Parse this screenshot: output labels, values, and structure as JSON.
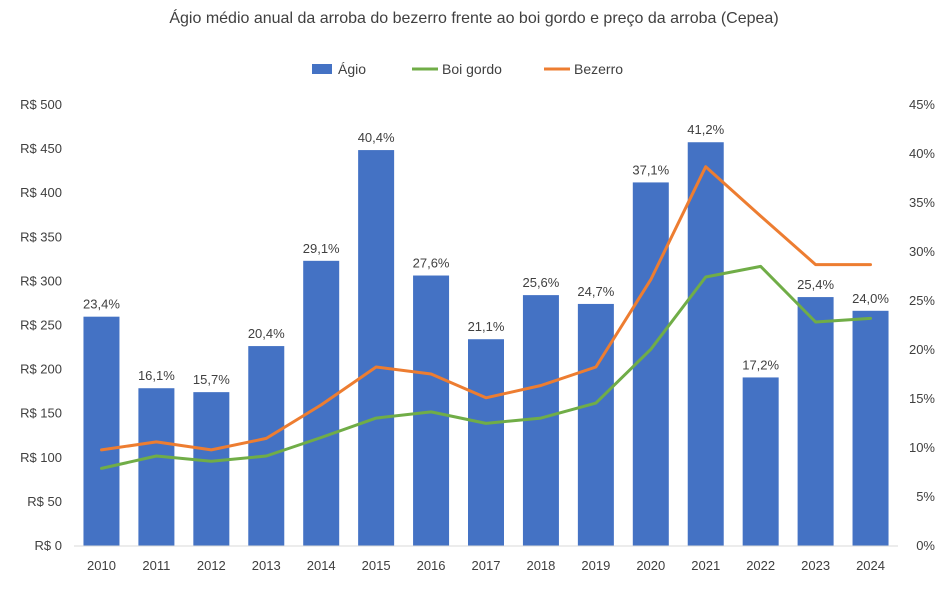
{
  "chart_data": {
    "type": "bar",
    "title": "Ágio médio anual da arroba do bezerro frente ao boi gordo e preço da arroba (Cepea)",
    "categories": [
      "2010",
      "2011",
      "2012",
      "2013",
      "2014",
      "2015",
      "2016",
      "2017",
      "2018",
      "2019",
      "2020",
      "2021",
      "2022",
      "2023",
      "2024"
    ],
    "series": [
      {
        "name": "Ágio",
        "type": "bar",
        "axis": "right",
        "color": "#4472C4",
        "values": [
          23.4,
          16.1,
          15.7,
          20.4,
          29.1,
          40.4,
          27.6,
          21.1,
          25.6,
          24.7,
          37.1,
          41.2,
          17.2,
          25.4,
          24.0
        ],
        "labels": [
          "23,4%",
          "16,1%",
          "15,7%",
          "20,4%",
          "29,1%",
          "40,4%",
          "27,6%",
          "21,1%",
          "25,6%",
          "24,7%",
          "37,1%",
          "41,2%",
          "17,2%",
          "25,4%",
          "24,0%"
        ]
      },
      {
        "name": "Boi gordo",
        "type": "line",
        "axis": "left",
        "color": "#70AD47",
        "values": [
          88,
          102,
          96,
          102,
          123,
          145,
          152,
          139,
          145,
          162,
          223,
          305,
          317,
          254,
          258
        ]
      },
      {
        "name": "Bezerro",
        "type": "line",
        "axis": "left",
        "color": "#ED7D31",
        "values": [
          109,
          118,
          109,
          122,
          160,
          203,
          195,
          168,
          182,
          203,
          302,
          430,
          374,
          319,
          319
        ]
      }
    ],
    "left_axis": {
      "range": [
        0,
        500
      ],
      "ticks": [
        0,
        50,
        100,
        150,
        200,
        250,
        300,
        350,
        400,
        450,
        500
      ],
      "tick_labels": [
        "R$ 0",
        "R$ 50",
        "R$ 100",
        "R$ 150",
        "R$ 200",
        "R$ 250",
        "R$ 300",
        "R$ 350",
        "R$ 400",
        "R$ 450",
        "R$ 500"
      ]
    },
    "right_axis": {
      "range": [
        0,
        45
      ],
      "ticks": [
        0,
        5,
        10,
        15,
        20,
        25,
        30,
        35,
        40,
        45
      ],
      "tick_labels": [
        "0%",
        "5%",
        "10%",
        "15%",
        "20%",
        "25%",
        "30%",
        "35%",
        "40%",
        "45%"
      ]
    },
    "grid": false,
    "legend_position": "top"
  }
}
